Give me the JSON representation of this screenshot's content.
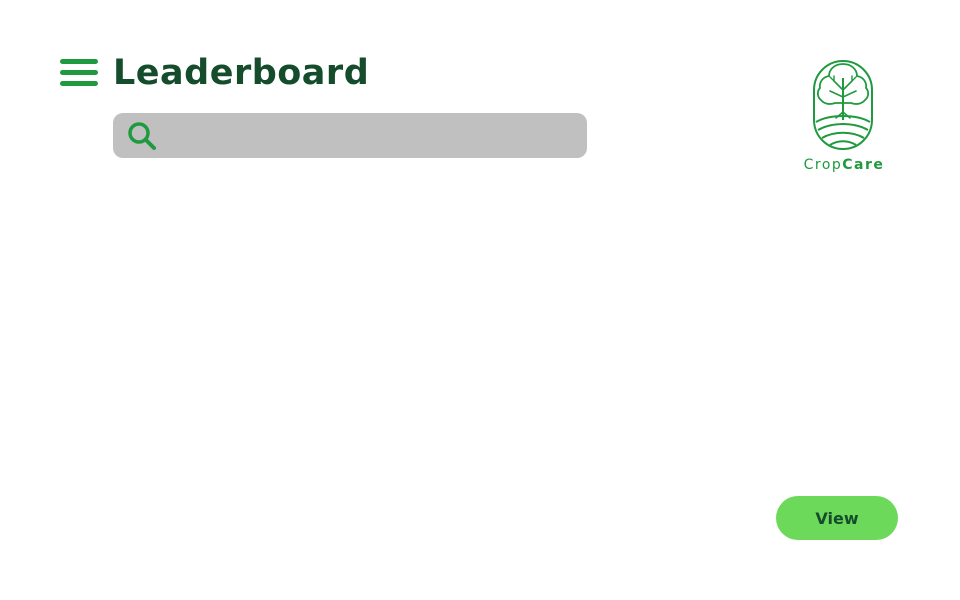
{
  "header": {
    "title": "Leaderboard",
    "menu_icon": "hamburger-menu-icon"
  },
  "search": {
    "placeholder": "",
    "value": "",
    "icon": "search-icon"
  },
  "logo": {
    "brand_prefix": "Crop",
    "brand_suffix": "Care",
    "icon": "tree-field-icon"
  },
  "actions": {
    "view_label": "View"
  },
  "colors": {
    "primary_green": "#1f9a3f",
    "dark_green": "#154d2c",
    "button_green": "#6cd95a",
    "search_bg": "#c0c0c0"
  }
}
